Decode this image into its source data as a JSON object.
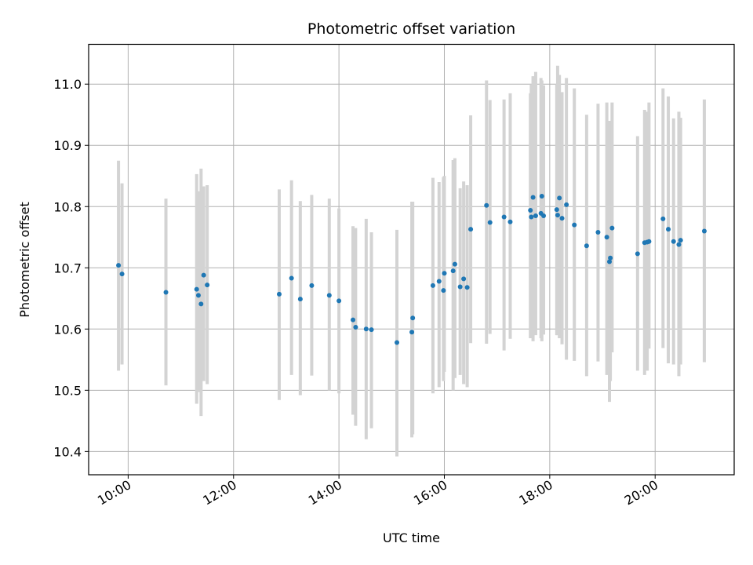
{
  "chart_data": {
    "type": "scatter",
    "title": "Photometric offset variation",
    "xlabel": "UTC time",
    "ylabel": "Photometric offset",
    "x_tick_labels": [
      "10:00",
      "12:00",
      "14:00",
      "16:00",
      "18:00",
      "20:00"
    ],
    "y_tick_labels": [
      "10.4",
      "10.5",
      "10.6",
      "10.7",
      "10.8",
      "10.9",
      "11.0"
    ],
    "xlim": [
      "09:15",
      "21:30"
    ],
    "ylim": [
      10.362,
      11.065
    ],
    "grid": true,
    "colors": {
      "points": "#1f77b4",
      "errorbars": "#d3d3d3",
      "grid": "#b0b0b0"
    },
    "series": [
      {
        "x": [
          "09:49",
          "09:53",
          "10:43",
          "11:18",
          "11:20",
          "11:23",
          "11:26",
          "11:30",
          "12:52",
          "13:06",
          "13:16",
          "13:29",
          "13:49",
          "14:00",
          "14:16",
          "14:19",
          "14:31",
          "14:37",
          "15:06",
          "15:23",
          "15:24",
          "15:47",
          "15:54",
          "15:59",
          "16:00",
          "16:10",
          "16:12",
          "16:18",
          "16:22",
          "16:26",
          "16:30",
          "16:48",
          "16:52",
          "17:08",
          "17:15",
          "17:38",
          "17:39",
          "17:41",
          "17:44",
          "17:50",
          "17:51",
          "17:53",
          "18:08",
          "18:09",
          "18:11",
          "18:14",
          "18:19",
          "18:28",
          "18:42",
          "18:55",
          "19:05",
          "19:08",
          "19:09",
          "19:11",
          "19:40",
          "19:48",
          "19:51",
          "19:53",
          "20:09",
          "20:15",
          "20:21",
          "20:27",
          "20:29",
          "20:56"
        ],
        "y": [
          10.704,
          10.69,
          10.66,
          10.665,
          10.655,
          10.641,
          10.688,
          10.672,
          10.657,
          10.683,
          10.649,
          10.671,
          10.655,
          10.646,
          10.615,
          10.603,
          10.6,
          10.599,
          10.578,
          10.595,
          10.618,
          10.671,
          10.678,
          10.663,
          10.691,
          10.695,
          10.706,
          10.669,
          10.682,
          10.668,
          10.763,
          10.802,
          10.774,
          10.783,
          10.775,
          10.794,
          10.783,
          10.815,
          10.785,
          10.789,
          10.817,
          10.785,
          10.795,
          10.786,
          10.814,
          10.781,
          10.803,
          10.77,
          10.736,
          10.758,
          10.75,
          10.71,
          10.716,
          10.765,
          10.723,
          10.741,
          10.742,
          10.743,
          10.78,
          10.763,
          10.743,
          10.738,
          10.745,
          10.76
        ],
        "error_low": [
          10.532,
          10.542,
          10.508,
          10.478,
          10.497,
          10.458,
          10.515,
          10.51,
          10.484,
          10.525,
          10.492,
          10.524,
          10.5,
          10.495,
          10.46,
          10.442,
          10.42,
          10.438,
          10.392,
          10.423,
          10.428,
          10.495,
          10.505,
          10.515,
          10.53,
          10.5,
          10.52,
          10.525,
          10.51,
          10.505,
          10.577,
          10.576,
          10.592,
          10.565,
          10.584,
          10.585,
          10.59,
          10.58,
          10.59,
          10.585,
          10.58,
          10.591,
          10.59,
          10.59,
          10.585,
          10.575,
          10.55,
          10.548,
          10.523,
          10.547,
          10.525,
          10.481,
          10.515,
          10.562,
          10.532,
          10.525,
          10.532,
          10.568,
          10.569,
          10.544,
          10.542,
          10.523,
          10.542,
          10.546
        ],
        "error_high": [
          10.875,
          10.838,
          10.813,
          10.853,
          10.825,
          10.862,
          10.833,
          10.835,
          10.828,
          10.843,
          10.809,
          10.819,
          10.813,
          10.797,
          10.768,
          10.765,
          10.78,
          10.758,
          10.762,
          10.808,
          10.808,
          10.847,
          10.84,
          10.848,
          10.85,
          10.876,
          10.879,
          10.83,
          10.841,
          10.835,
          10.949,
          11.006,
          10.974,
          10.975,
          10.985,
          10.985,
          11.0,
          11.013,
          11.02,
          11.01,
          11.006,
          10.998,
          11.0,
          11.03,
          11.015,
          10.987,
          11.01,
          10.993,
          10.95,
          10.968,
          10.97,
          10.94,
          10.933,
          10.97,
          10.915,
          10.958,
          10.955,
          10.97,
          10.993,
          10.98,
          10.944,
          10.955,
          10.945,
          10.975
        ]
      }
    ]
  }
}
